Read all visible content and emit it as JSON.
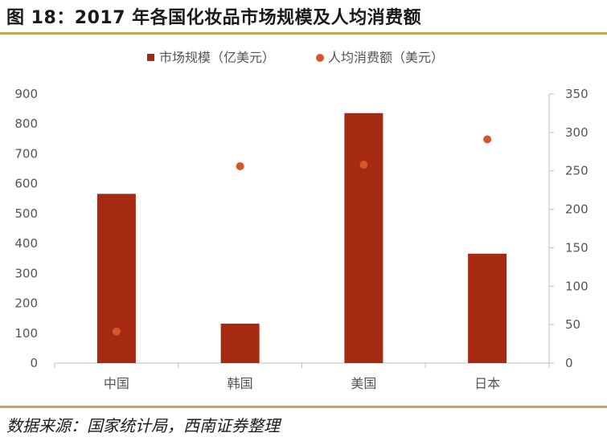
{
  "header": {
    "title": "图 18：2017 年各国化妆品市场规模及人均消费额"
  },
  "footer": {
    "source": "数据来源：国家统计局，西南证券整理"
  },
  "chart_data": {
    "type": "bar",
    "categories": [
      "中国",
      "韩国",
      "美国",
      "日本"
    ],
    "series": [
      {
        "name": "市场规模（亿美元）",
        "kind": "bar",
        "axis": "left",
        "color": "#a52a11",
        "values": [
          566,
          132,
          836,
          366
        ]
      },
      {
        "name": "人均消费额（美元）",
        "kind": "scatter",
        "axis": "right",
        "color": "#d4572a",
        "values": [
          41,
          256,
          258,
          291
        ]
      }
    ],
    "ylim_left": [
      0,
      900
    ],
    "yticks_left": [
      0,
      100,
      200,
      300,
      400,
      500,
      600,
      700,
      800,
      900
    ],
    "ylim_right": [
      0,
      350
    ],
    "yticks_right": [
      0,
      50,
      100,
      150,
      200,
      250,
      300,
      350
    ],
    "legend": "top-center",
    "grid": false
  }
}
